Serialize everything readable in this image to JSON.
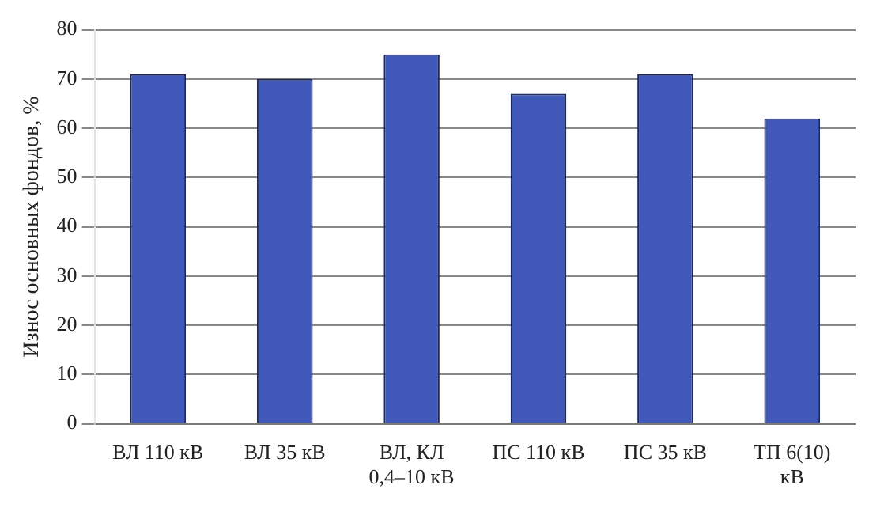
{
  "chart_data": {
    "type": "bar",
    "ylabel": "Износ основных фондов, %",
    "categories": [
      [
        "ВЛ 110 кВ"
      ],
      [
        "ВЛ 35 кВ"
      ],
      [
        "ВЛ, КЛ",
        "0,4–10 кВ"
      ],
      [
        "ПС 110 кВ"
      ],
      [
        "ПС 35 кВ"
      ],
      [
        "ТП 6(10)",
        "кВ"
      ]
    ],
    "values": [
      71,
      70,
      75,
      67,
      71,
      62
    ],
    "color": "#4058b8",
    "ylim": [
      0,
      80
    ],
    "yticks": [
      0,
      10,
      20,
      30,
      40,
      50,
      60,
      70,
      80
    ],
    "grid": "y"
  }
}
